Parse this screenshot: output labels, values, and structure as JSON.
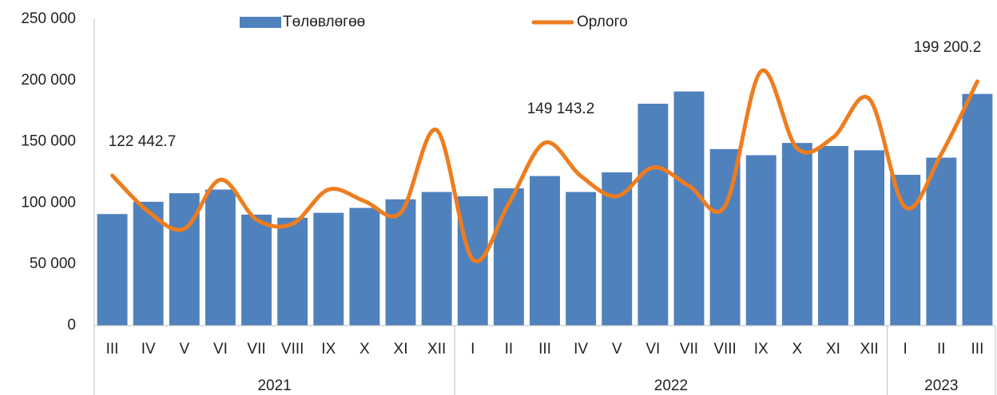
{
  "chart_data": {
    "type": "bar_line",
    "category_groups": [
      {
        "name": "2021",
        "categories": [
          "III",
          "IV",
          "V",
          "VI",
          "VII",
          "VIII",
          "IX",
          "X",
          "XI",
          "XII"
        ]
      },
      {
        "name": "2022",
        "categories": [
          "I",
          "II",
          "III",
          "IV",
          "V",
          "VI",
          "VII",
          "VIII",
          "IX",
          "X",
          "XI",
          "XII"
        ]
      },
      {
        "name": "2023",
        "categories": [
          "I",
          "II",
          "III"
        ]
      }
    ],
    "series": [
      {
        "name": "Төлөвлөгөө",
        "type": "bar",
        "color": "#4f81bd",
        "values": [
          91000,
          101000,
          108000,
          111000,
          90500,
          88000,
          92000,
          96000,
          103000,
          109000,
          105500,
          112000,
          122000,
          109000,
          125000,
          181000,
          191000,
          144000,
          139000,
          149000,
          146500,
          143000,
          123000,
          137000,
          189000
        ]
      },
      {
        "name": "Орлого",
        "type": "line",
        "color": "#ee7d1f",
        "values": [
          122442.7,
          93000,
          79000,
          119000,
          86500,
          83000,
          111000,
          101500,
          92000,
          159500,
          54000,
          99500,
          149143.2,
          122000,
          105500,
          129000,
          114000,
          97500,
          207500,
          144500,
          153500,
          185000,
          96500,
          140000,
          199200.2
        ],
        "value_labels": [
          "122 442.7",
          null,
          null,
          null,
          null,
          null,
          null,
          null,
          null,
          null,
          null,
          null,
          "149 143.2",
          null,
          null,
          null,
          null,
          null,
          null,
          null,
          null,
          null,
          null,
          null,
          "199 200.2"
        ]
      }
    ],
    "ylim": [
      0,
      250000
    ],
    "yticks": [
      0,
      {
        "value": 50000,
        "label": "50 000"
      },
      {
        "value": 100000,
        "label": "100 000"
      },
      {
        "value": 150000,
        "label": "150 000"
      },
      {
        "value": 200000,
        "label": "200 000"
      },
      {
        "value": 250000,
        "label": "250 000"
      }
    ],
    "grid": false,
    "legend": "top"
  }
}
